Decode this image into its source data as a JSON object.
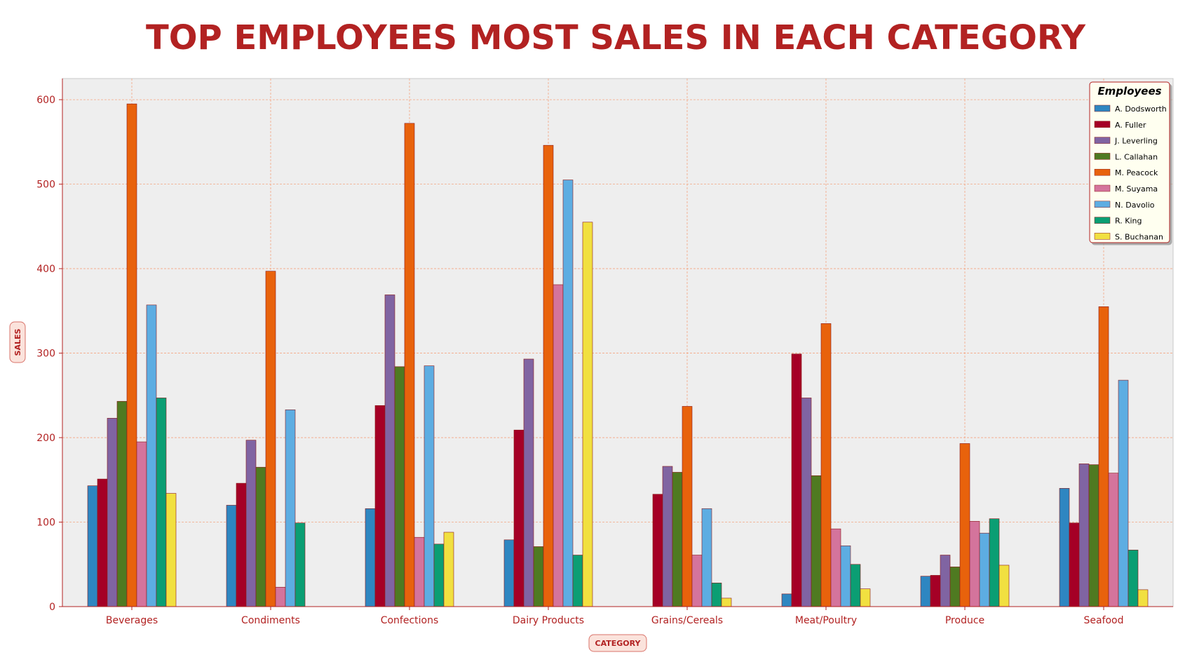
{
  "chart_data": {
    "type": "bar",
    "title": "TOP EMPLOYEES MOST SALES IN EACH CATEGORY",
    "xlabel": "CATEGORY",
    "ylabel": "SALES",
    "ylim": [
      0,
      625
    ],
    "yticks": [
      0,
      100,
      200,
      300,
      400,
      500,
      600
    ],
    "grid": true,
    "legend_title": "Employees",
    "legend_position": "top-right",
    "categories": [
      "Beverages",
      "Condiments",
      "Confections",
      "Dairy Products",
      "Grains/Cereals",
      "Meat/Poultry",
      "Produce",
      "Seafood"
    ],
    "series": [
      {
        "name": "A. Dodsworth",
        "color": "#2e86c1",
        "values": [
          143,
          120,
          116,
          79,
          null,
          15,
          36,
          140
        ]
      },
      {
        "name": "A. Fuller",
        "color": "#a50026",
        "values": [
          151,
          146,
          238,
          209,
          133,
          299,
          37,
          99
        ]
      },
      {
        "name": "J. Leverling",
        "color": "#8064a2",
        "values": [
          223,
          197,
          369,
          293,
          166,
          247,
          61,
          169
        ]
      },
      {
        "name": "L. Callahan",
        "color": "#4f7a21",
        "values": [
          243,
          165,
          284,
          71,
          159,
          155,
          47,
          168
        ]
      },
      {
        "name": "M. Peacock",
        "color": "#e8620c",
        "values": [
          595,
          397,
          572,
          546,
          237,
          335,
          193,
          355
        ]
      },
      {
        "name": "M. Suyama",
        "color": "#d4749c",
        "values": [
          195,
          23,
          82,
          381,
          61,
          92,
          101,
          158
        ]
      },
      {
        "name": "N. Davolio",
        "color": "#5dade2",
        "values": [
          357,
          233,
          285,
          505,
          116,
          72,
          87,
          268
        ]
      },
      {
        "name": "R. King",
        "color": "#0b9e73",
        "values": [
          247,
          99,
          74,
          61,
          28,
          50,
          104,
          67
        ]
      },
      {
        "name": "S. Buchanan",
        "color": "#f1e040",
        "values": [
          134,
          null,
          88,
          455,
          10,
          21,
          49,
          20
        ]
      }
    ]
  },
  "colors": {
    "title": "#b22222",
    "axis_text": "#b22222",
    "plot_bg": "#eeeeee",
    "grid": "#f4a582",
    "legend_bg": "#fffff0"
  }
}
